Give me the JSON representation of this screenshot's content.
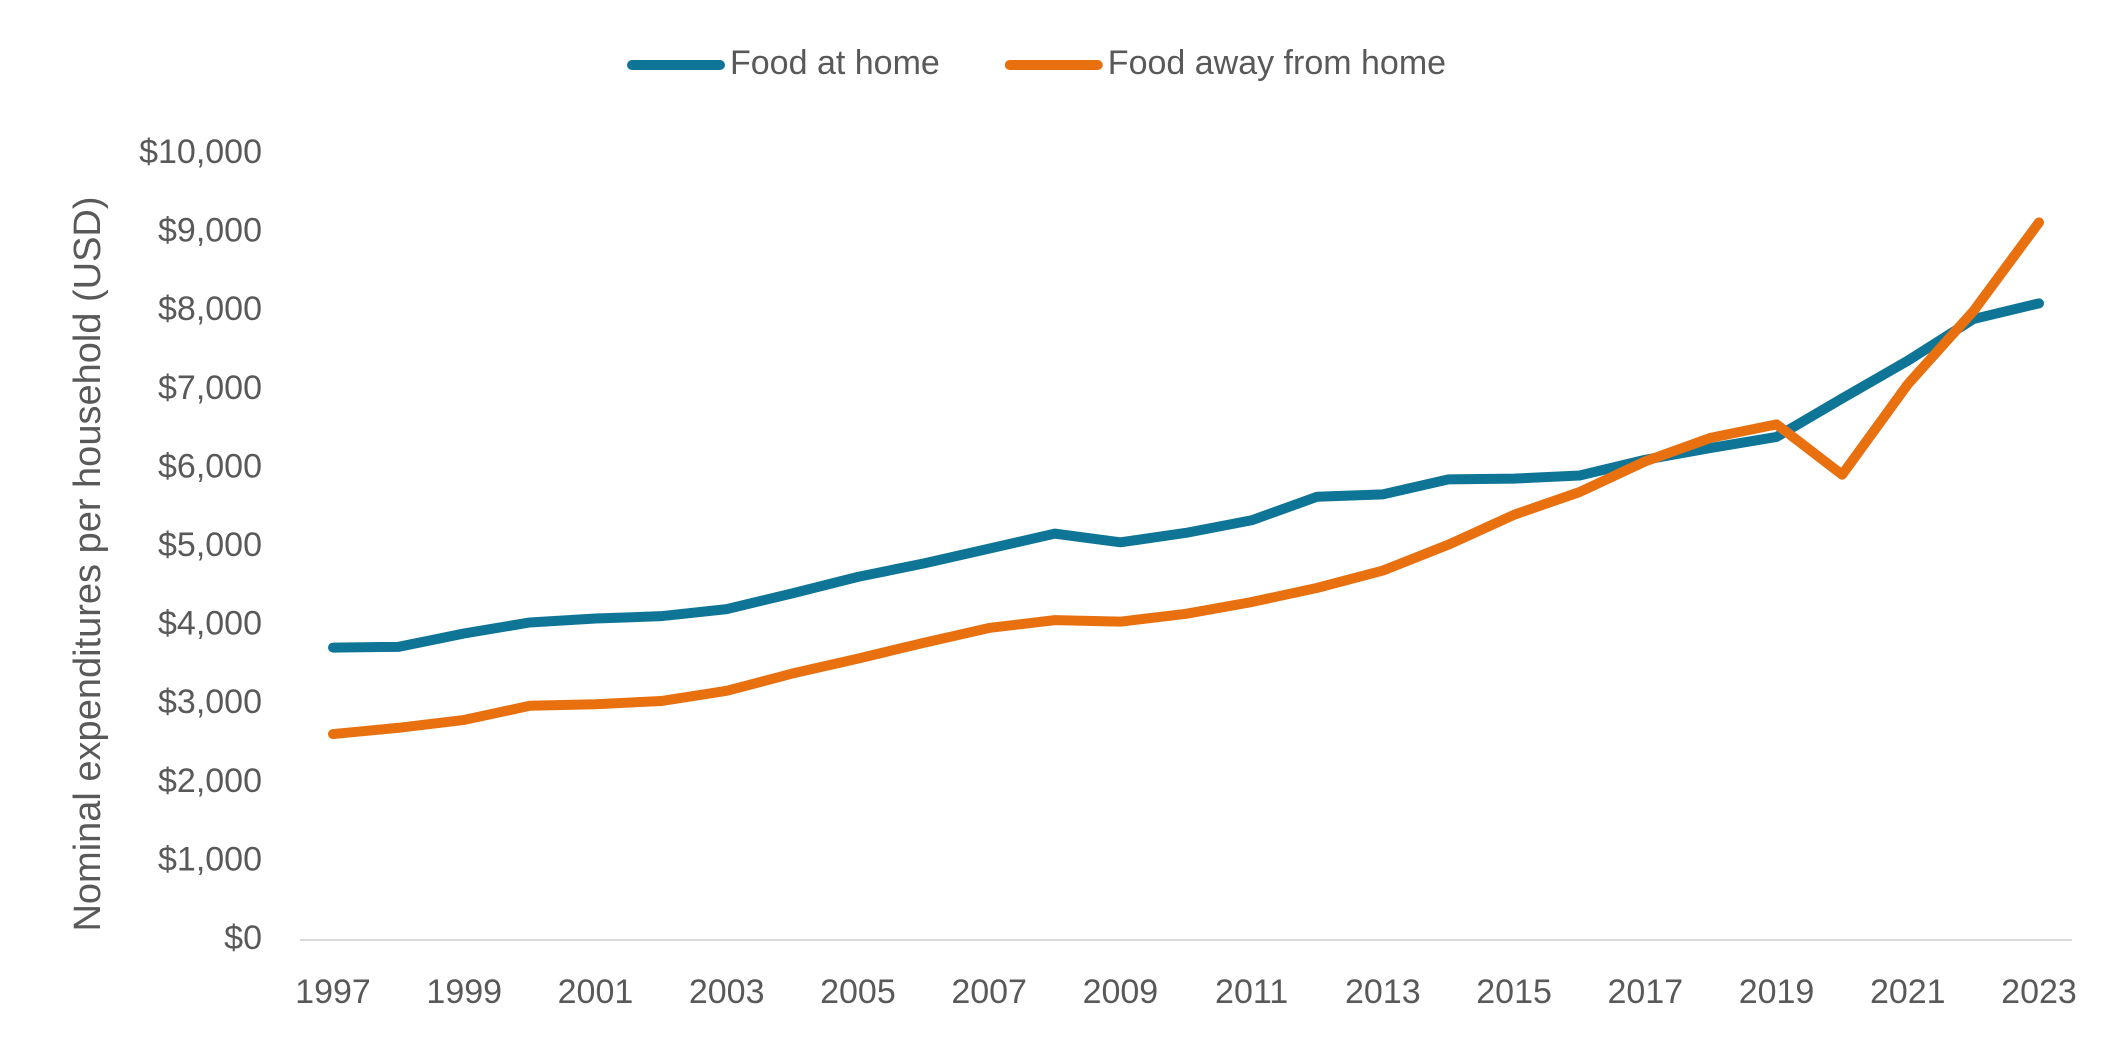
{
  "chart_data": {
    "type": "line",
    "y_label": "Nominal expenditures per household (USD)",
    "x": [
      1997,
      1998,
      1999,
      2000,
      2001,
      2002,
      2003,
      2004,
      2005,
      2006,
      2007,
      2008,
      2009,
      2010,
      2011,
      2012,
      2013,
      2014,
      2015,
      2016,
      2017,
      2018,
      2019,
      2020,
      2021,
      2022,
      2023
    ],
    "series": [
      {
        "name": "Food at home",
        "color": "#0e7597",
        "values": [
          3720,
          3730,
          3900,
          4040,
          4090,
          4120,
          4210,
          4410,
          4620,
          4790,
          4980,
          5170,
          5060,
          5180,
          5340,
          5640,
          5670,
          5860,
          5870,
          5910,
          6110,
          6260,
          6400,
          6890,
          7370,
          7900,
          8100
        ]
      },
      {
        "name": "Food away from home",
        "color": "#e8700f",
        "values": [
          2620,
          2700,
          2800,
          2980,
          3000,
          3040,
          3170,
          3390,
          3580,
          3780,
          3970,
          4070,
          4050,
          4150,
          4300,
          4480,
          4700,
          5030,
          5410,
          5700,
          6090,
          6390,
          6560,
          5920,
          7070,
          8000,
          9130
        ]
      }
    ],
    "xlim": [
      1997,
      2023
    ],
    "xticks": [
      1997,
      1999,
      2001,
      2003,
      2005,
      2007,
      2009,
      2011,
      2013,
      2015,
      2017,
      2019,
      2021,
      2023
    ],
    "ylim": [
      0,
      10000
    ],
    "yticks": [
      {
        "value": 0,
        "label": "$0"
      },
      {
        "value": 1000,
        "label": "$1,000"
      },
      {
        "value": 2000,
        "label": "$2,000"
      },
      {
        "value": 3000,
        "label": "$3,000"
      },
      {
        "value": 4000,
        "label": "$4,000"
      },
      {
        "value": 5000,
        "label": "$5,000"
      },
      {
        "value": 6000,
        "label": "$6,000"
      },
      {
        "value": 7000,
        "label": "$7,000"
      },
      {
        "value": 8000,
        "label": "$8,000"
      },
      {
        "value": 9000,
        "label": "$9,000"
      },
      {
        "value": 10000,
        "label": "$10,000"
      }
    ],
    "grid": false,
    "legend": "top"
  }
}
